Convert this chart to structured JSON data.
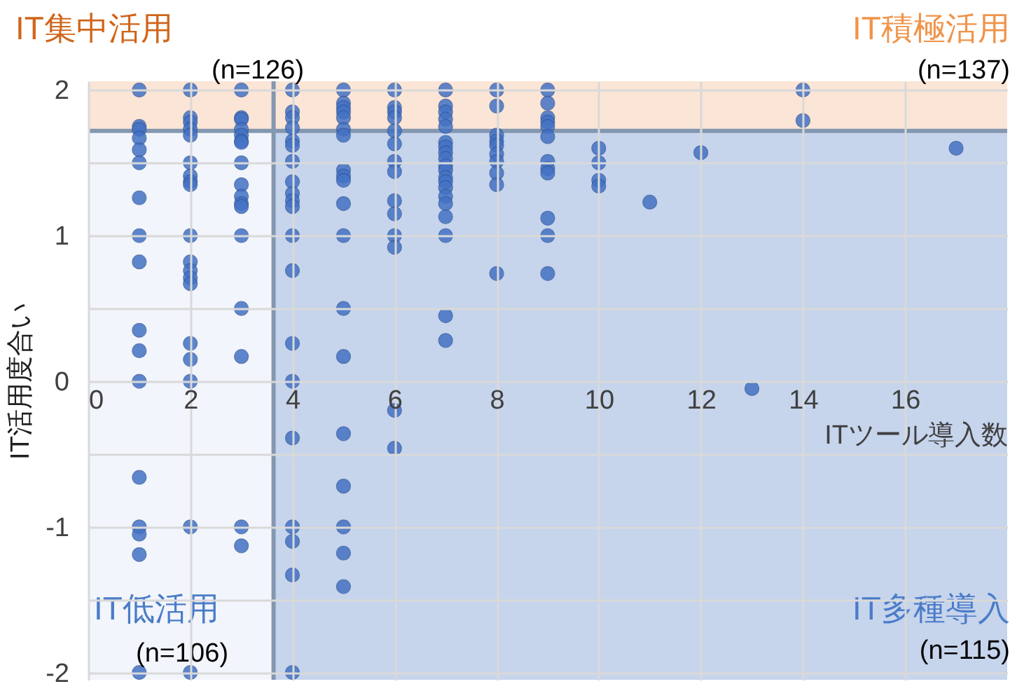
{
  "chart_data": {
    "type": "scatter",
    "xlabel": "ITツール導入数",
    "ylabel": "IT活用度合い",
    "xlim": [
      0,
      18
    ],
    "xticks": [
      0,
      2,
      4,
      6,
      8,
      10,
      12,
      14,
      16
    ],
    "ylim": [
      -2.05,
      2.06
    ],
    "yticks": [
      -2,
      {
        "value": -1.5,
        "label": null
      },
      -1,
      {
        "value": -0.5,
        "label": null
      },
      0,
      {
        "value": 0.5,
        "label": null
      },
      1,
      {
        "value": 1.5,
        "label": null
      },
      2
    ],
    "grid": true,
    "marker": "circle",
    "series": [
      {
        "color": "#4472c4",
        "x": [
          1,
          1,
          1,
          1,
          1,
          1,
          1,
          1,
          1,
          1,
          1,
          1,
          1,
          1,
          1,
          1,
          1,
          2,
          2,
          2,
          2,
          2,
          2,
          2,
          2,
          2,
          2,
          2,
          2,
          2,
          2,
          2,
          2,
          2,
          2,
          2,
          3,
          3,
          3,
          3,
          3,
          3,
          3,
          3,
          3,
          3,
          3,
          3,
          3,
          3,
          3,
          3,
          3,
          4,
          4,
          4,
          4,
          4,
          4,
          4,
          4,
          4,
          4,
          4,
          4,
          4,
          4,
          4,
          4,
          4,
          4,
          4,
          4,
          5,
          5,
          5,
          5,
          5,
          5,
          5,
          5,
          5,
          5,
          5,
          5,
          5,
          5,
          5,
          5,
          5,
          5,
          5,
          6,
          6,
          6,
          6,
          6,
          6,
          6,
          6,
          6,
          6,
          6,
          6,
          6,
          6,
          7,
          7,
          7,
          7,
          7,
          7,
          7,
          7,
          7,
          7,
          7,
          7,
          7,
          7,
          7,
          7,
          7,
          7,
          7,
          7,
          8,
          8,
          8,
          8,
          8,
          8,
          8,
          8,
          8,
          8,
          9,
          9,
          9,
          9,
          9,
          9,
          9,
          9,
          9,
          9,
          9,
          9,
          10,
          10,
          10,
          10,
          11,
          12,
          13,
          14,
          14,
          17
        ],
        "values": [
          2,
          1.75,
          1.73,
          1.67,
          1.59,
          1.5,
          1.26,
          1,
          0.82,
          0.35,
          0.21,
          0,
          -0.66,
          -1,
          -1.05,
          -1.19,
          -2,
          2,
          1.81,
          1.78,
          1.73,
          1.69,
          1.5,
          1.41,
          1.37,
          1.35,
          1,
          0.82,
          0.76,
          0.71,
          0.67,
          0.26,
          0.15,
          0,
          -1,
          -2,
          2,
          1.81,
          1.8,
          1.73,
          1.69,
          1.65,
          1.64,
          1.5,
          1.35,
          1.27,
          1.22,
          1.2,
          1,
          0.5,
          0.17,
          -1,
          -1.13,
          2,
          1.85,
          1.81,
          1.74,
          1.65,
          1.62,
          1.51,
          1.37,
          1.29,
          1.24,
          1.2,
          1,
          0.76,
          0.26,
          0,
          -0.39,
          -1,
          -1.1,
          -1.33,
          -2,
          2,
          1.91,
          1.88,
          1.85,
          1.81,
          1.73,
          1.69,
          1.45,
          1.41,
          1.38,
          1.22,
          1,
          0.5,
          0.17,
          -0.36,
          -0.72,
          -1,
          -1.18,
          -1.41,
          2,
          1.88,
          1.85,
          1.81,
          1.72,
          1.63,
          1.51,
          1.44,
          1.24,
          1.15,
          1,
          0.92,
          -0.2,
          -0.46,
          2,
          1.89,
          1.85,
          1.8,
          1.75,
          1.64,
          1.61,
          1.57,
          1.53,
          1.48,
          1.45,
          1.4,
          1.37,
          1.33,
          1.27,
          1.22,
          1.13,
          1,
          0.45,
          0.28,
          2,
          1.89,
          1.69,
          1.65,
          1.62,
          1.56,
          1.51,
          1.43,
          1.35,
          0.74,
          2,
          1.91,
          1.81,
          1.78,
          1.75,
          1.68,
          1.51,
          1.46,
          1.43,
          1.12,
          1,
          0.74,
          1.6,
          1.5,
          1.38,
          1.34,
          1.23,
          1.57,
          -0.05,
          2,
          1.79,
          1.6
        ]
      }
    ],
    "bands": [
      {
        "axis": "x",
        "from": 0,
        "to": 3.63,
        "color": "#f2f5fb"
      },
      {
        "axis": "x",
        "from": 3.63,
        "to": 18,
        "color": "#c6d4ec"
      },
      {
        "axis": "y",
        "from": 1.72,
        "to": 2.06,
        "color": "#fbe5d6"
      }
    ],
    "ref_lines": [
      {
        "axis": "x",
        "value": 3.63,
        "color": "#8497b0"
      },
      {
        "axis": "y",
        "value": 1.72,
        "color": "#8497b0"
      }
    ],
    "annotations": [
      "IT集中活用",
      "(n=126)",
      "IT積極活用",
      "(n=137)",
      "IT低活用",
      "(n=106)",
      "IT多種導入",
      "(n=115)"
    ]
  }
}
